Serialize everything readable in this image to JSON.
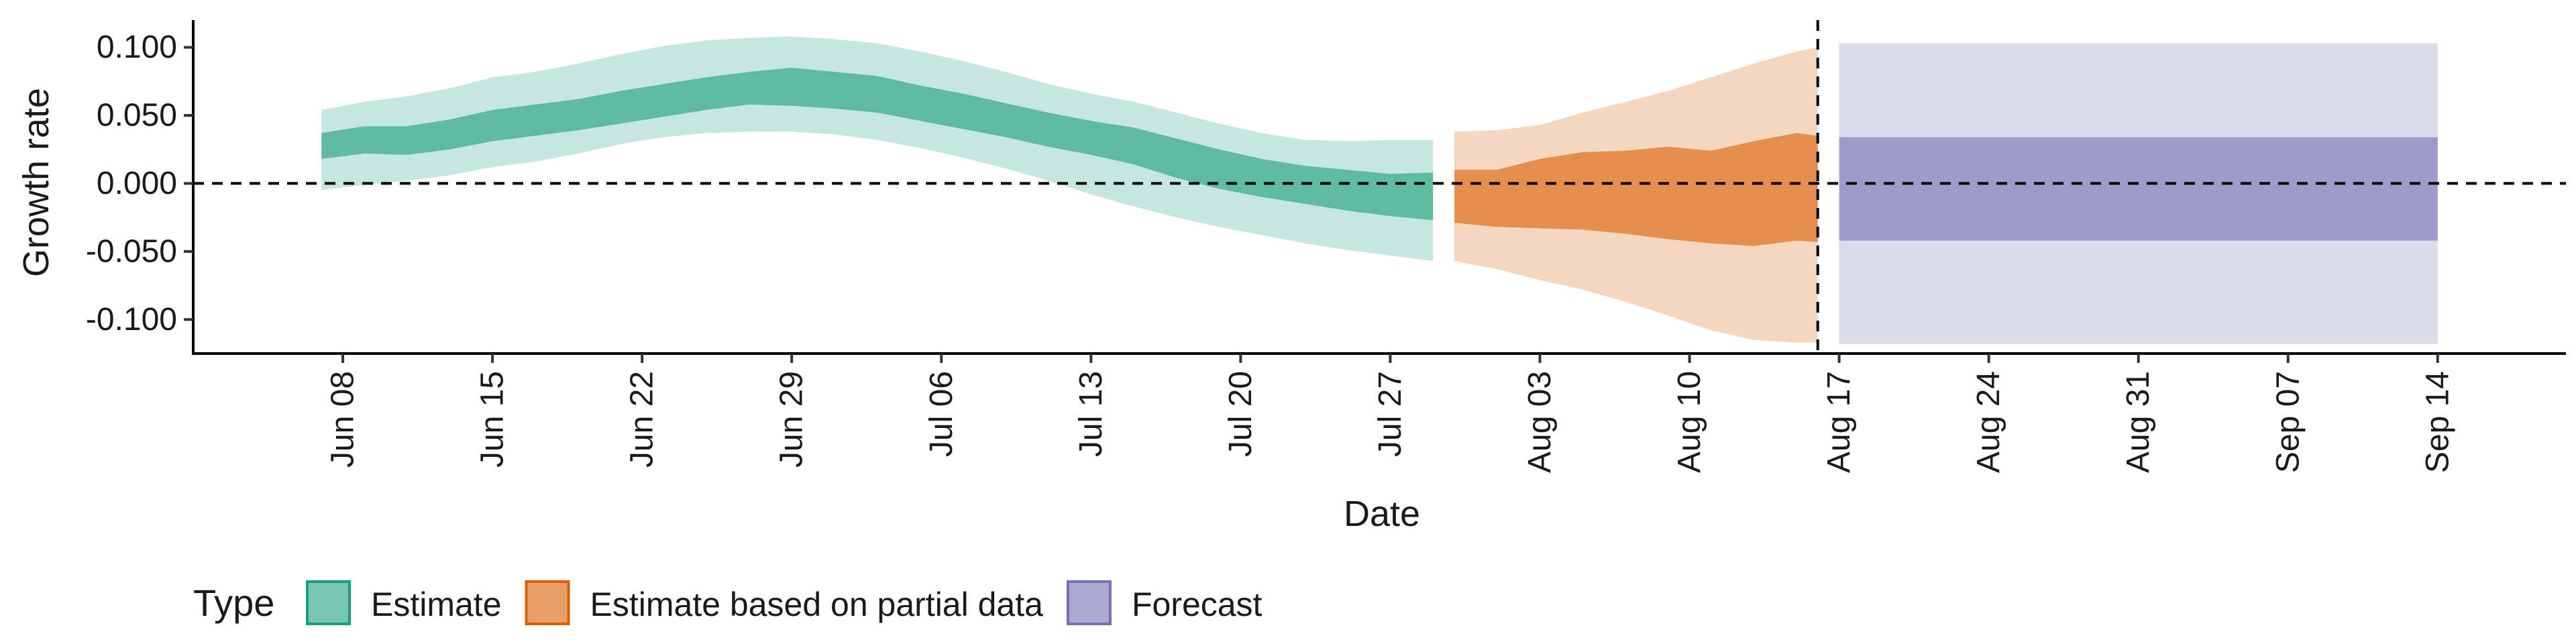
{
  "chart_data": {
    "type": "area",
    "xlabel": "Date",
    "ylabel": "Growth rate",
    "ylim": [
      -0.125,
      0.12
    ],
    "xlim": [
      "2020-06-01",
      "2020-09-20"
    ],
    "x_ticks": [
      "2020-06-08",
      "2020-06-15",
      "2020-06-22",
      "2020-06-29",
      "2020-07-06",
      "2020-07-13",
      "2020-07-20",
      "2020-07-27",
      "2020-08-03",
      "2020-08-10",
      "2020-08-17",
      "2020-08-24",
      "2020-08-31",
      "2020-09-07",
      "2020-09-14"
    ],
    "x_tick_labels": [
      "Jun 08",
      "Jun 15",
      "Jun 22",
      "Jun 29",
      "Jul 06",
      "Jul 13",
      "Jul 20",
      "Jul 27",
      "Aug 03",
      "Aug 10",
      "Aug 17",
      "Aug 24",
      "Aug 31",
      "Sep 07",
      "Sep 14"
    ],
    "y_ticks": [
      0.1,
      0.05,
      0.0,
      -0.05,
      -0.1
    ],
    "y_tick_labels": [
      "0.100",
      "0.050",
      "0.000",
      "-0.050",
      "-0.100"
    ],
    "reference_lines": {
      "horizontal_y": 0.0,
      "vertical_x": "2020-08-16",
      "style": "dashed"
    },
    "grid": false,
    "legend": {
      "title": "Type",
      "position": "bottom-left",
      "orientation": "horizontal"
    },
    "series": [
      {
        "name": "Estimate",
        "color": "#1b9e77",
        "x": [
          "2020-06-07",
          "2020-06-09",
          "2020-06-11",
          "2020-06-13",
          "2020-06-15",
          "2020-06-17",
          "2020-06-19",
          "2020-06-21",
          "2020-06-23",
          "2020-06-25",
          "2020-06-27",
          "2020-06-29",
          "2020-07-01",
          "2020-07-03",
          "2020-07-05",
          "2020-07-07",
          "2020-07-09",
          "2020-07-11",
          "2020-07-13",
          "2020-07-15",
          "2020-07-17",
          "2020-07-19",
          "2020-07-21",
          "2020-07-23",
          "2020-07-25",
          "2020-07-27",
          "2020-07-29"
        ],
        "inner_upper": [
          0.037,
          0.042,
          0.042,
          0.047,
          0.054,
          0.058,
          0.062,
          0.068,
          0.073,
          0.078,
          0.082,
          0.085,
          0.082,
          0.079,
          0.072,
          0.066,
          0.059,
          0.052,
          0.046,
          0.041,
          0.033,
          0.025,
          0.018,
          0.013,
          0.01,
          0.007,
          0.008
        ],
        "inner_lower": [
          0.018,
          0.022,
          0.021,
          0.025,
          0.031,
          0.035,
          0.039,
          0.044,
          0.049,
          0.054,
          0.058,
          0.057,
          0.055,
          0.052,
          0.046,
          0.04,
          0.034,
          0.027,
          0.021,
          0.014,
          0.004,
          -0.004,
          -0.01,
          -0.015,
          -0.02,
          -0.024,
          -0.027
        ],
        "outer_upper": [
          0.054,
          0.06,
          0.064,
          0.07,
          0.078,
          0.082,
          0.088,
          0.095,
          0.101,
          0.105,
          0.107,
          0.108,
          0.106,
          0.103,
          0.097,
          0.09,
          0.082,
          0.073,
          0.066,
          0.06,
          0.052,
          0.044,
          0.037,
          0.032,
          0.031,
          0.032,
          0.032
        ],
        "outer_lower": [
          -0.005,
          -0.001,
          0.002,
          0.006,
          0.012,
          0.016,
          0.022,
          0.029,
          0.034,
          0.037,
          0.038,
          0.038,
          0.036,
          0.032,
          0.026,
          0.019,
          0.011,
          0.002,
          -0.008,
          -0.017,
          -0.025,
          -0.032,
          -0.038,
          -0.044,
          -0.049,
          -0.053,
          -0.057
        ]
      },
      {
        "name": "Estimate based on partial data",
        "color": "#d95f02",
        "x": [
          "2020-07-30",
          "2020-08-01",
          "2020-08-03",
          "2020-08-05",
          "2020-08-07",
          "2020-08-09",
          "2020-08-11",
          "2020-08-13",
          "2020-08-15",
          "2020-08-16"
        ],
        "inner_upper": [
          0.01,
          0.01,
          0.018,
          0.023,
          0.024,
          0.027,
          0.024,
          0.031,
          0.037,
          0.035
        ],
        "inner_lower": [
          -0.029,
          -0.032,
          -0.033,
          -0.034,
          -0.037,
          -0.041,
          -0.044,
          -0.046,
          -0.042,
          -0.043
        ],
        "outer_upper": [
          0.038,
          0.039,
          0.043,
          0.052,
          0.06,
          0.068,
          0.078,
          0.088,
          0.097,
          0.1
        ],
        "outer_lower": [
          -0.057,
          -0.063,
          -0.071,
          -0.078,
          -0.087,
          -0.097,
          -0.108,
          -0.115,
          -0.117,
          -0.117
        ]
      },
      {
        "name": "Forecast",
        "color": "#7570b3",
        "x": [
          "2020-08-17",
          "2020-09-14"
        ],
        "inner_upper": [
          0.034,
          0.034
        ],
        "inner_lower": [
          -0.042,
          -0.042
        ],
        "outer_upper": [
          0.103,
          0.103
        ],
        "outer_lower": [
          -0.118,
          -0.118
        ]
      }
    ]
  }
}
